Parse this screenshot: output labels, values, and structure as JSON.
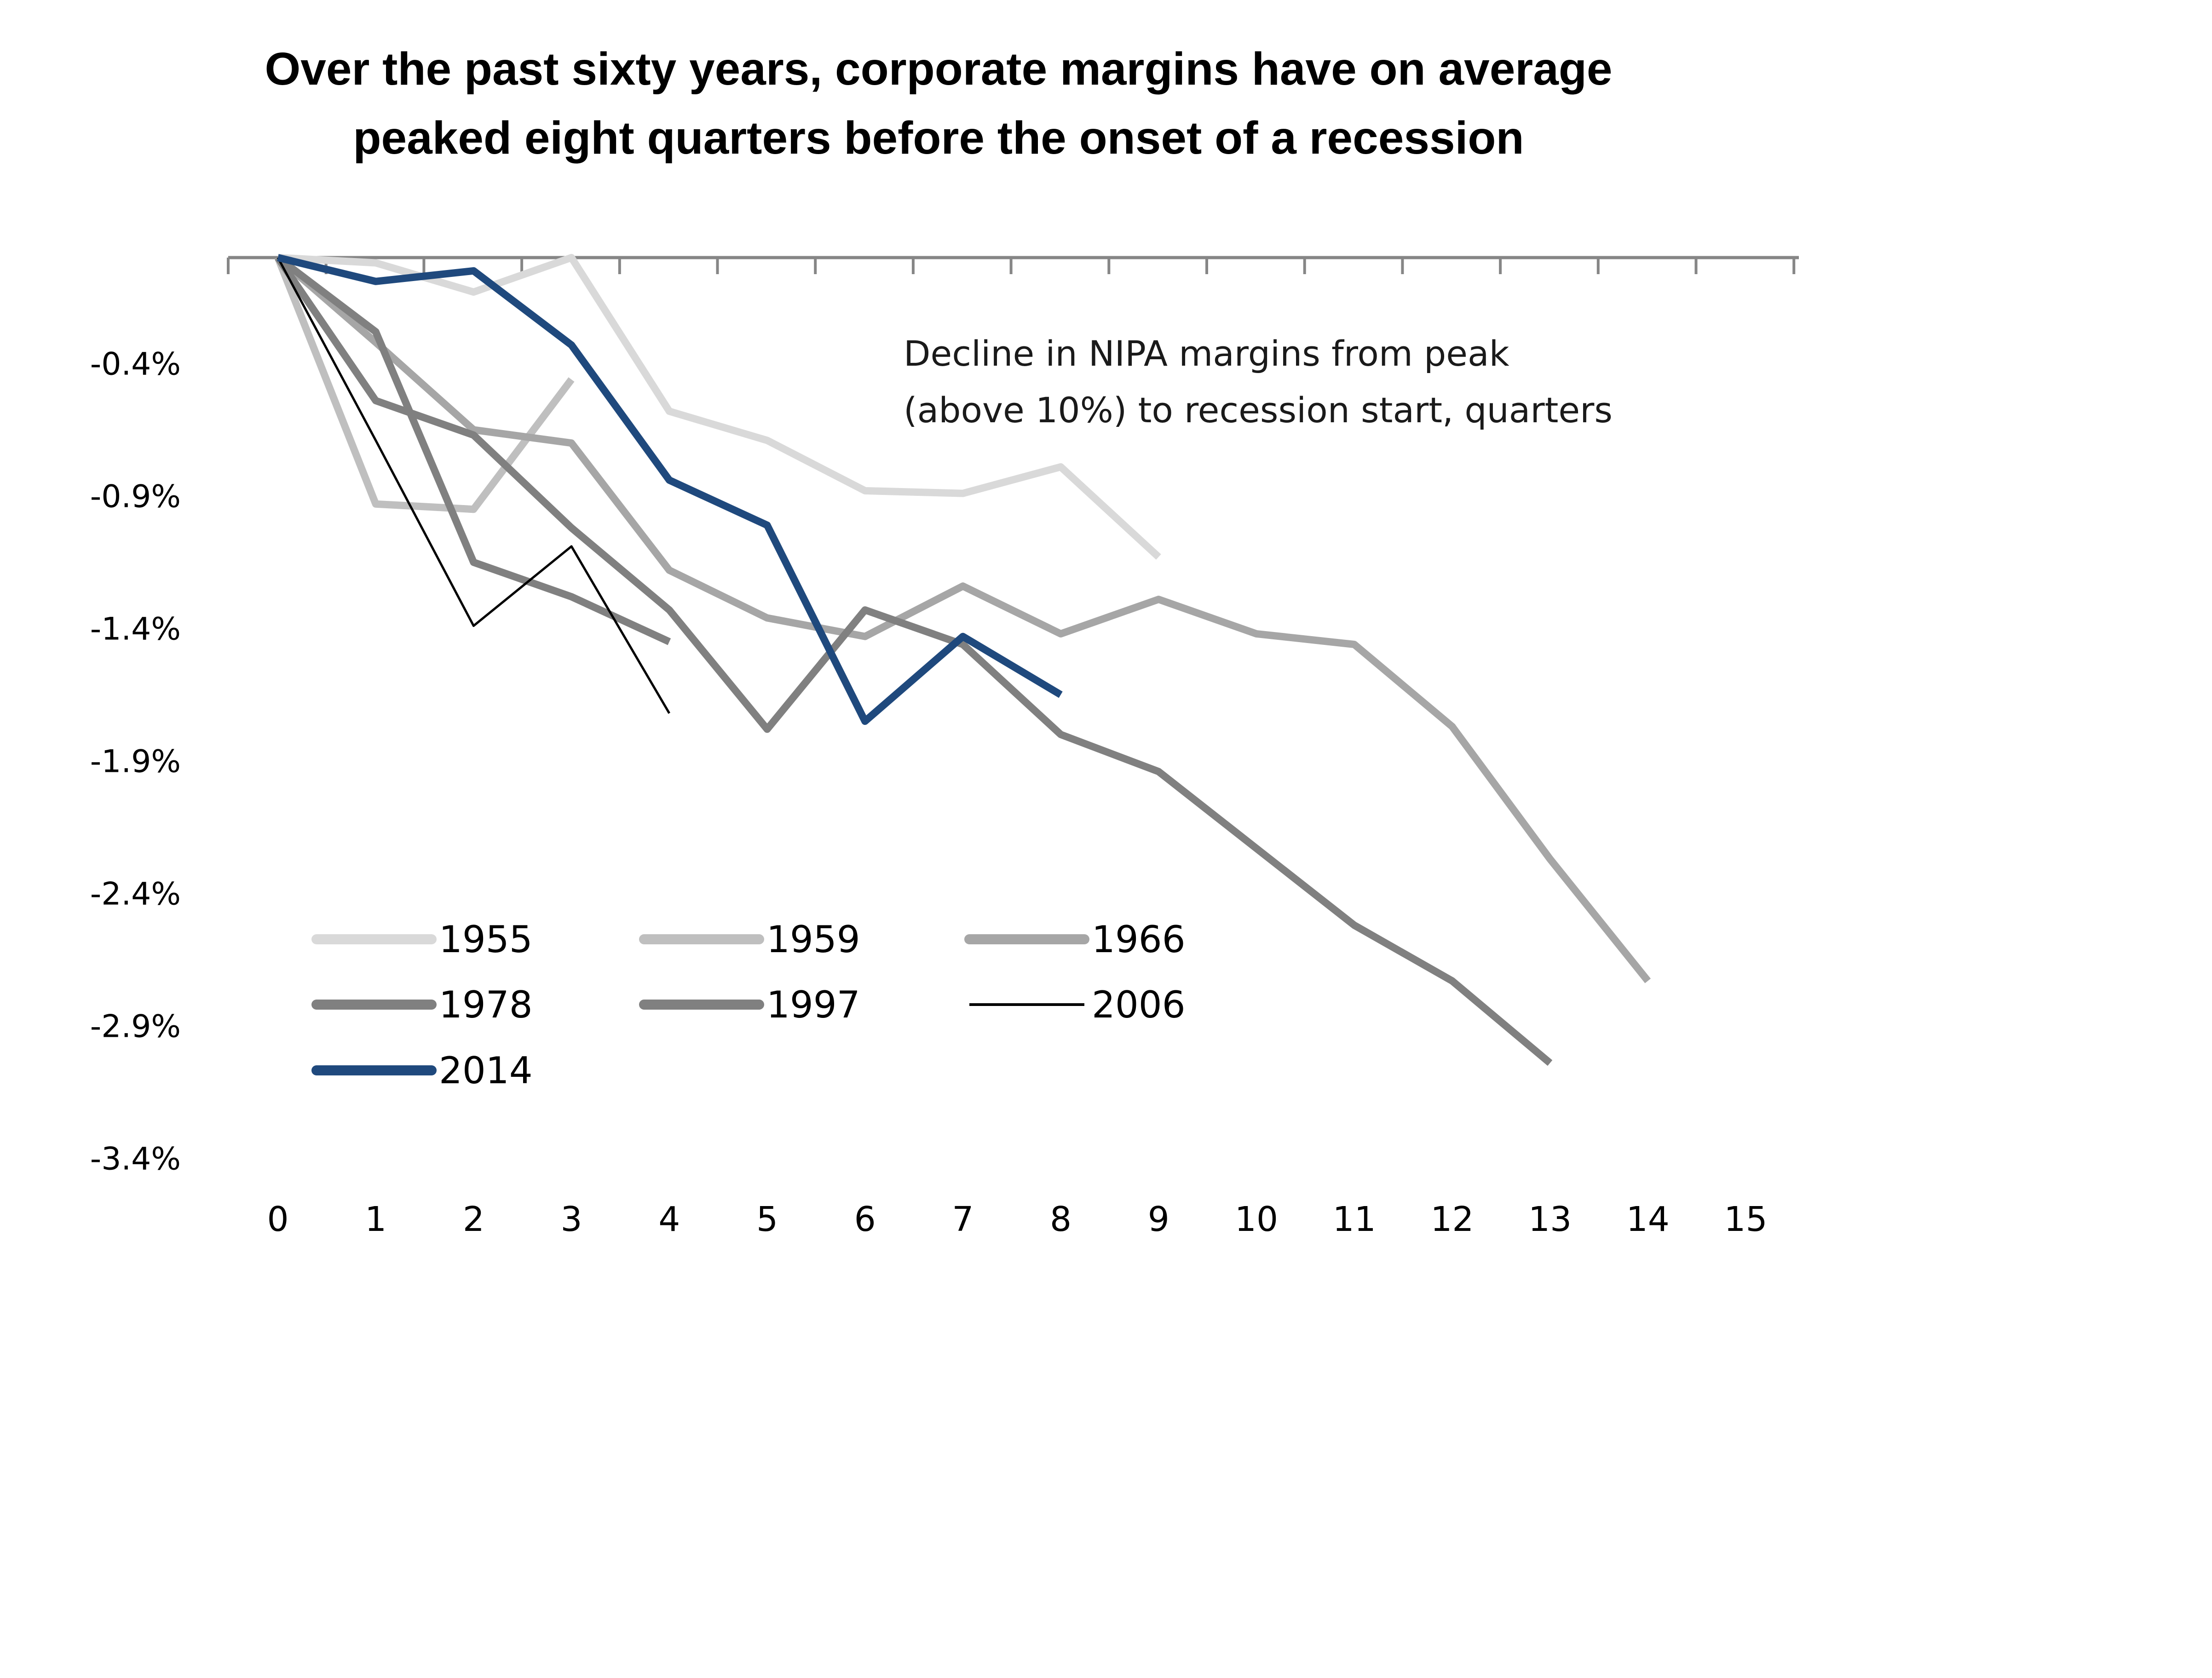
{
  "chart_data": {
    "type": "line",
    "title": "Over the past sixty years, corporate margins have on average peaked eight quarters before the onset of a recession",
    "title_lines": [
      "Over the past sixty years, corporate margins have on average",
      "peaked eight quarters before the onset of a recession"
    ],
    "annotation_lines": [
      "Decline in NIPA margins from peak",
      "(above 10%) to recession start, quarters"
    ],
    "xlabel": "",
    "ylabel": "",
    "x_ticks": [
      0,
      1,
      2,
      3,
      4,
      5,
      6,
      7,
      8,
      9,
      10,
      11,
      12,
      13,
      14,
      15
    ],
    "y_ticks": [
      -0.4,
      -0.9,
      -1.4,
      -1.9,
      -2.4,
      -2.9,
      -3.4
    ],
    "y_tick_labels": [
      "-0.4%",
      "-0.9%",
      "-1.4%",
      "-1.9%",
      "-2.4%",
      "-2.9%",
      "-3.4%"
    ],
    "xlim": [
      0,
      15
    ],
    "ylim": [
      -3.4,
      0
    ],
    "x_axis_position": "top",
    "grid": false,
    "legend_placement": "bottom-left",
    "series": [
      {
        "name": "1955",
        "color": "#d9d9d9",
        "width": "thick",
        "values": [
          0,
          -0.02,
          -0.13,
          0.0,
          -0.58,
          -0.69,
          -0.88,
          -0.89,
          -0.79,
          -1.13
        ]
      },
      {
        "name": "1959",
        "color": "#bfbfbf",
        "width": "thick",
        "values": [
          0,
          -0.93,
          -0.95,
          -0.46
        ]
      },
      {
        "name": "1966",
        "color": "#a6a6a6",
        "width": "thick",
        "values": [
          0,
          -0.32,
          -0.65,
          -0.7,
          -1.18,
          -1.36,
          -1.43,
          -1.24,
          -1.42,
          -1.29,
          -1.42,
          -1.46,
          -1.77,
          -2.27,
          -2.73
        ]
      },
      {
        "name": "1978",
        "color": "#808080",
        "width": "thick",
        "values": [
          0,
          -0.28,
          -1.15,
          -1.28,
          -1.45
        ]
      },
      {
        "name": "1997",
        "color": "#808080",
        "width": "thick",
        "values": [
          0,
          -0.54,
          -0.67,
          -1.02,
          -1.33,
          -1.78,
          -1.33,
          -1.46,
          -1.8,
          -1.94,
          -2.23,
          -2.52,
          -2.73,
          -3.04
        ]
      },
      {
        "name": "2006",
        "color": "#000000",
        "width": "thin",
        "values": [
          0,
          -0.69,
          -1.39,
          -1.09,
          -1.72
        ]
      },
      {
        "name": "2014",
        "color": "#1f497d",
        "width": "thick",
        "values": [
          0,
          -0.09,
          -0.05,
          -0.33,
          -0.84,
          -1.01,
          -1.75,
          -1.43,
          -1.65
        ]
      }
    ]
  }
}
